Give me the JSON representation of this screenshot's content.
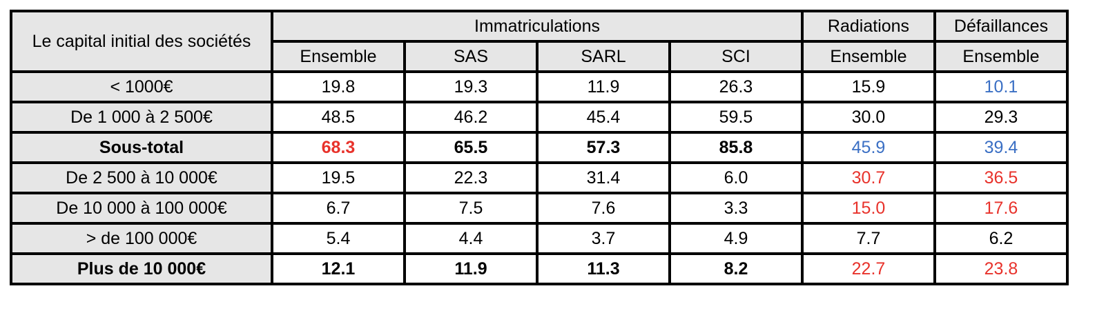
{
  "table": {
    "row_header_title": "Le capital initial des sociétés",
    "groups": [
      {
        "name": "Immatriculations",
        "columns": [
          "Ensemble",
          "SAS",
          "SARL",
          "SCI"
        ]
      },
      {
        "name": "Radiations",
        "columns": [
          "Ensemble"
        ]
      },
      {
        "name": "Défaillances",
        "columns": [
          "Ensemble"
        ]
      }
    ],
    "rows": [
      {
        "label": "< 1000€",
        "bold": false,
        "cells": [
          "19.8",
          "19.3",
          "11.9",
          "26.3",
          "15.9",
          "10.1"
        ],
        "colors": [
          "#000000",
          "#000000",
          "#000000",
          "#000000",
          "#000000",
          "#3a6fc4"
        ]
      },
      {
        "label": "De 1 000 à 2 500€",
        "bold": false,
        "cells": [
          "48.5",
          "46.2",
          "45.4",
          "59.5",
          "30.0",
          "29.3"
        ],
        "colors": [
          "#000000",
          "#000000",
          "#000000",
          "#000000",
          "#000000",
          "#000000"
        ]
      },
      {
        "label": "Sous-total",
        "bold": true,
        "cells": [
          "68.3",
          "65.5",
          "57.3",
          "85.8",
          "45.9",
          "39.4"
        ],
        "colors": [
          "#e8322b",
          "#000000",
          "#000000",
          "#000000",
          "#3a6fc4",
          "#3a6fc4"
        ],
        "cell_bold": [
          true,
          true,
          true,
          true,
          false,
          false
        ]
      },
      {
        "label": "De 2 500 à 10 000€",
        "bold": false,
        "cells": [
          "19.5",
          "22.3",
          "31.4",
          "6.0",
          "30.7",
          "36.5"
        ],
        "colors": [
          "#000000",
          "#000000",
          "#000000",
          "#000000",
          "#e8322b",
          "#e8322b"
        ]
      },
      {
        "label": "De 10 000 à 100 000€",
        "bold": false,
        "cells": [
          "6.7",
          "7.5",
          "7.6",
          "3.3",
          "15.0",
          "17.6"
        ],
        "colors": [
          "#000000",
          "#000000",
          "#000000",
          "#000000",
          "#e8322b",
          "#e8322b"
        ]
      },
      {
        "label": "> de 100 000€",
        "bold": false,
        "cells": [
          "5.4",
          "4.4",
          "3.7",
          "4.9",
          "7.7",
          "6.2"
        ],
        "colors": [
          "#000000",
          "#000000",
          "#000000",
          "#000000",
          "#000000",
          "#000000"
        ]
      },
      {
        "label": "Plus de 10 000€",
        "bold": true,
        "cells": [
          "12.1",
          "11.9",
          "11.3",
          "8.2",
          "22.7",
          "23.8"
        ],
        "colors": [
          "#000000",
          "#000000",
          "#000000",
          "#000000",
          "#e8322b",
          "#e8322b"
        ],
        "cell_bold": [
          true,
          true,
          true,
          true,
          false,
          false
        ]
      }
    ]
  }
}
